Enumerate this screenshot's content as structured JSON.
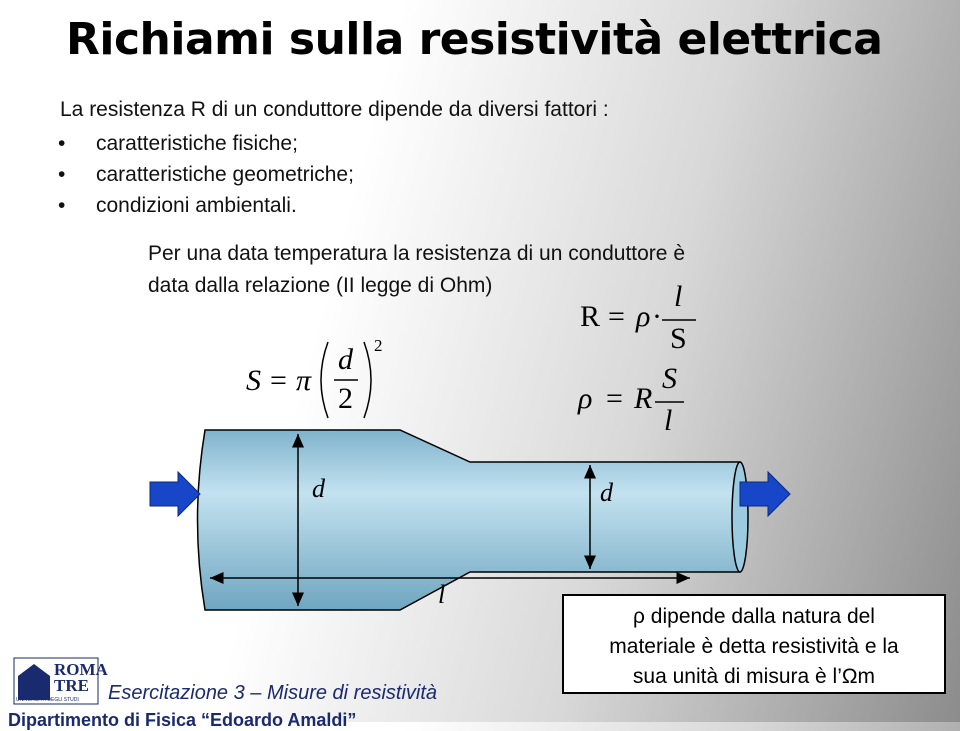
{
  "title": "Richiami sulla resistività elettrica",
  "intro": "La resistenza R di un conduttore dipende da diversi fattori :",
  "bullets": [
    "caratteristiche fisiche;",
    "caratteristiche geometriche;",
    "condizioni ambientali."
  ],
  "paragraph": [
    "Per una data temperatura la resistenza di un conduttore è",
    "data dalla relazione (II legge di Ohm)"
  ],
  "area_formula": {
    "lhs": "S",
    "eq": "=",
    "pi": "π",
    "numerator": "d",
    "denominator": "2",
    "exponent": "2"
  },
  "resistance_formula": {
    "lhs": "R",
    "eq": "=",
    "rho": "ρ",
    "dot": "·",
    "numerator": "l",
    "denominator": "S"
  },
  "resistivity_formula": {
    "lhs": "ρ",
    "eq": "=",
    "factor": "R",
    "numerator": "S",
    "denominator": "l"
  },
  "diagram": {
    "wide_diameter": "d",
    "narrow_diameter": "d",
    "length": "l"
  },
  "note": [
    "ρ dipende dalla natura del",
    "materiale è detta resistività e la",
    "sua unità di misura è l’Ωm"
  ],
  "footer": {
    "logo_line1": "ROMA",
    "logo_line2": "TRE",
    "logo_line3": "UNIVERSITÀ DEGLI STUDI",
    "course": "Esercitazione 3 – Misure di resistività",
    "department": "Dipartimento di Fisica “Edoardo Amaldi”"
  }
}
